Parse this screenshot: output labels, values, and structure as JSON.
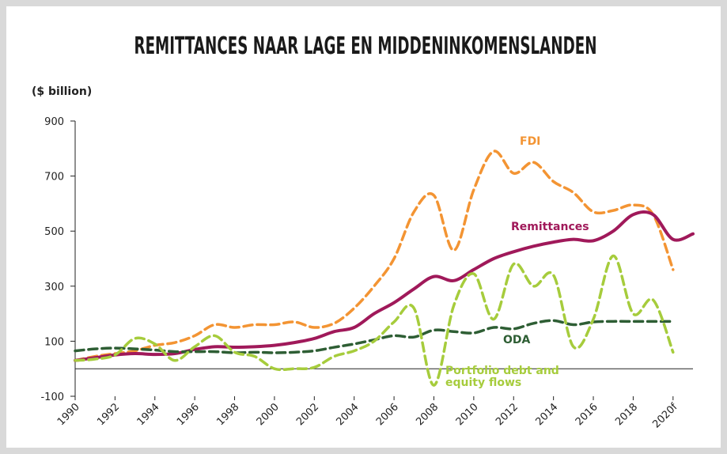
{
  "chart_data": {
    "type": "line",
    "title": "REMITTANCES NAAR LAGE EN MIDDENINKOMENSLANDEN",
    "y_label": "($ billion)",
    "x": [
      1990,
      1991,
      1992,
      1993,
      1994,
      1995,
      1996,
      1997,
      1998,
      1999,
      2000,
      2001,
      2002,
      2003,
      2004,
      2005,
      2006,
      2007,
      2008,
      2009,
      2010,
      2011,
      2012,
      2013,
      2014,
      2015,
      2016,
      2017,
      2018,
      2019,
      2020,
      2021
    ],
    "xlim": [
      1990,
      2021
    ],
    "xticks": [
      1990,
      1992,
      1994,
      1996,
      1998,
      2000,
      2002,
      2004,
      2006,
      2008,
      2010,
      2012,
      2014,
      2016,
      2018,
      {
        "value": 2020,
        "label": "2020f"
      }
    ],
    "ylim": [
      -100,
      900
    ],
    "yticks": [
      -100,
      100,
      300,
      500,
      700,
      900
    ],
    "series": [
      {
        "name": "FDI",
        "color": "#f39433",
        "dash": true,
        "values": [
          30,
          45,
          55,
          65,
          85,
          95,
          120,
          160,
          150,
          160,
          160,
          170,
          150,
          165,
          220,
          300,
          400,
          570,
          630,
          430,
          650,
          790,
          710,
          750,
          680,
          640,
          570,
          575,
          595,
          560,
          360,
          null
        ]
      },
      {
        "name": "Remittances",
        "color": "#a0195a",
        "dash": false,
        "values": [
          30,
          40,
          50,
          55,
          52,
          55,
          70,
          80,
          78,
          80,
          85,
          95,
          110,
          135,
          150,
          200,
          240,
          290,
          335,
          320,
          360,
          400,
          425,
          445,
          460,
          470,
          465,
          500,
          560,
          560,
          470,
          490
        ]
      },
      {
        "name": "ODA",
        "color": "#2e5e34",
        "dash": true,
        "values": [
          65,
          72,
          75,
          72,
          68,
          62,
          62,
          62,
          58,
          60,
          58,
          60,
          65,
          78,
          90,
          105,
          120,
          115,
          140,
          135,
          130,
          150,
          145,
          165,
          175,
          160,
          170,
          172,
          172,
          172,
          172,
          null
        ]
      },
      {
        "name": "Portfolio debt and equity flows",
        "color": "#a6cc3c",
        "dash": true,
        "values": [
          30,
          35,
          50,
          110,
          90,
          30,
          80,
          120,
          60,
          45,
          0,
          0,
          5,
          45,
          65,
          100,
          170,
          220,
          -60,
          230,
          345,
          180,
          380,
          300,
          340,
          80,
          180,
          410,
          200,
          250,
          60,
          null
        ]
      }
    ]
  }
}
